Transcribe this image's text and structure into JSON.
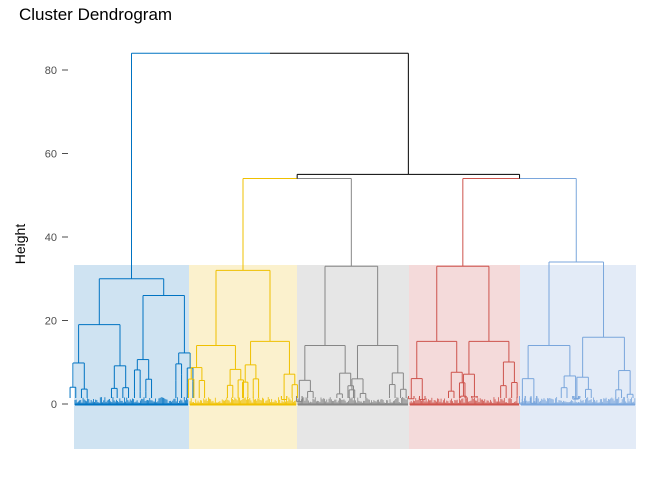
{
  "chart_data": {
    "type": "dendrogram",
    "title": "Cluster Dendrogram",
    "xlabel": "",
    "ylabel": "Height",
    "yticks": [
      0,
      20,
      40,
      60,
      80
    ],
    "ylim": [
      -11,
      86
    ],
    "grid": false,
    "legend": "none",
    "root_height": 84,
    "cut_height": 33,
    "clusters": [
      {
        "id": "c1",
        "color": "#0073C2",
        "band_color": "#CFE3F2",
        "height": 30,
        "children": [
          {
            "height": 19,
            "spread": 0.22
          },
          {
            "height": 26,
            "spread": 0.78
          }
        ]
      },
      {
        "id": "c2",
        "color": "#EFC000",
        "band_color": "#FBF1CD",
        "height": 32,
        "children": [
          {
            "height": 14,
            "spread": 0.25
          },
          {
            "height": 15,
            "spread": 0.75
          }
        ]
      },
      {
        "id": "c3",
        "color": "#868686",
        "band_color": "#E6E6E6",
        "height": 33,
        "children": [
          {
            "height": 14,
            "spread": 0.25
          },
          {
            "height": 14,
            "spread": 0.72
          }
        ]
      },
      {
        "id": "c4",
        "color": "#CD534C",
        "band_color": "#F4DADA",
        "height": 33,
        "children": [
          {
            "height": 15,
            "spread": 0.25
          },
          {
            "height": 15,
            "spread": 0.72
          }
        ]
      },
      {
        "id": "c5",
        "color": "#7AA6DC",
        "band_color": "#E3EBF7",
        "height": 34,
        "children": [
          {
            "height": 14,
            "spread": 0.25
          },
          {
            "height": 16,
            "spread": 0.72
          }
        ]
      }
    ],
    "merges": [
      {
        "id": "m23",
        "left": "c2",
        "right": "c3",
        "height": 54
      },
      {
        "id": "m45",
        "left": "c4",
        "right": "c5",
        "height": 54
      },
      {
        "id": "m2345",
        "left": "m23",
        "right": "m45",
        "height": 55
      },
      {
        "id": "root",
        "left": "c1",
        "right": "m2345",
        "height": 84
      }
    ],
    "upper_link_color": "#000000"
  }
}
